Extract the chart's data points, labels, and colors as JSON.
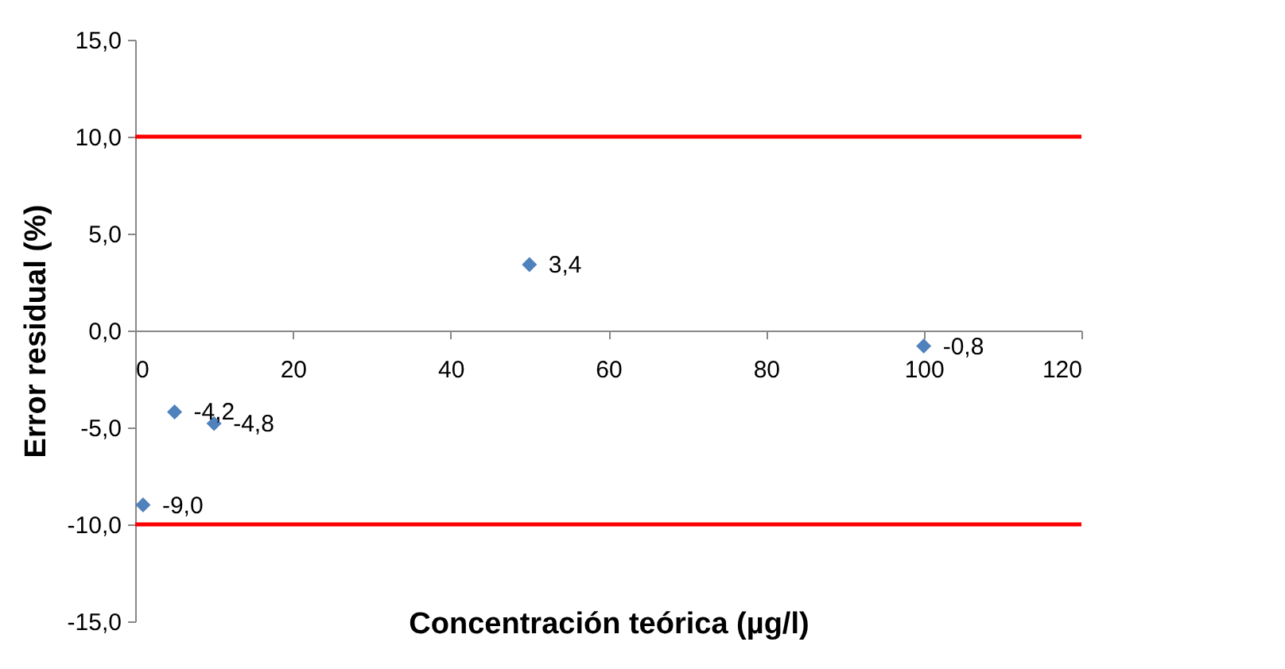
{
  "chart_data": {
    "type": "scatter",
    "xlabel": "Concentración teórica (µg/l)",
    "ylabel": "Error residual (%)",
    "x": [
      1,
      5,
      10,
      50,
      100
    ],
    "series": [
      {
        "color": "#4f81bd",
        "values": [
          -9.0,
          -4.2,
          -4.8,
          3.4,
          -0.8
        ],
        "value_labels": [
          "-9,0",
          "-4,2",
          "-4,8",
          "3,4",
          "-0,8"
        ]
      }
    ],
    "xlim": [
      0,
      120
    ],
    "xticks": [
      0,
      20,
      40,
      60,
      80,
      100,
      120
    ],
    "ylim": [
      -15,
      15
    ],
    "yticks": [
      {
        "value": -15,
        "label": "-15,0"
      },
      {
        "value": -10,
        "label": "-10,0"
      },
      {
        "value": -5,
        "label": "-5,0"
      },
      {
        "value": 0,
        "label": "0,0"
      },
      {
        "value": 5,
        "label": "5,0"
      },
      {
        "value": 10,
        "label": "10,0"
      },
      {
        "value": 15,
        "label": "15,0"
      }
    ],
    "ref_lines": [
      {
        "axis": "y",
        "value": 10,
        "color": "#ff0000"
      },
      {
        "axis": "y",
        "value": -10,
        "color": "#ff0000"
      }
    ],
    "marker": "diamond",
    "grid": false
  }
}
